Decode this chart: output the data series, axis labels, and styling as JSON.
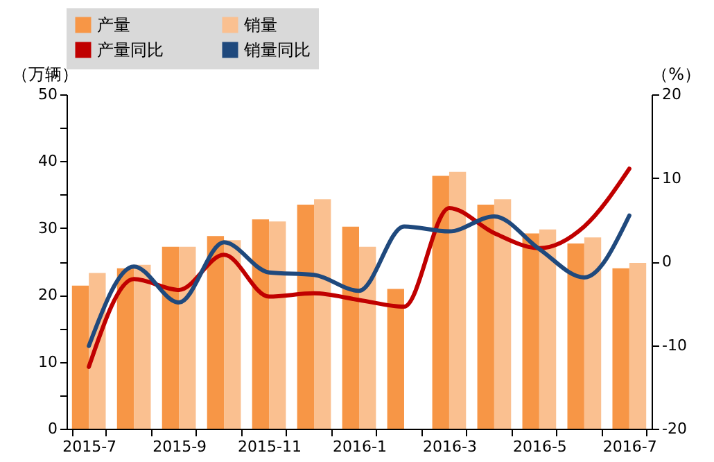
{
  "chart_data": {
    "type": "bar",
    "categories": [
      "2015-7",
      null,
      "2015-9",
      null,
      "2015-11",
      null,
      "2016-1",
      null,
      "2016-3",
      null,
      "2016-5",
      null,
      "2016-7"
    ],
    "series": [
      {
        "name": "产量",
        "type": "bar",
        "color": "#f79646",
        "values": [
          21.4,
          24.0,
          27.2,
          28.8,
          31.3,
          33.5,
          30.2,
          20.9,
          37.8,
          33.5,
          29.2,
          27.7,
          24.0
        ]
      },
      {
        "name": "销量",
        "type": "bar",
        "color": "#fac090",
        "values": [
          23.3,
          24.5,
          27.2,
          28.2,
          31.0,
          34.3,
          27.2,
          null,
          38.4,
          34.3,
          29.8,
          28.6,
          24.8
        ]
      },
      {
        "name": "产量同比",
        "type": "line",
        "axis": "y2",
        "color": "#c00000",
        "values": [
          -12.6,
          -2.1,
          -3.4,
          0.8,
          -4.2,
          -3.8,
          -4.6,
          -5.4,
          6.4,
          3.4,
          1.6,
          4.2,
          11.1
        ]
      },
      {
        "name": "销量同比",
        "type": "line",
        "axis": "y2",
        "color": "#1f497d",
        "values": [
          -10.1,
          -0.6,
          -4.9,
          2.3,
          -1.3,
          -1.6,
          -3.5,
          4.2,
          3.6,
          5.4,
          1.5,
          -1.9,
          5.5
        ]
      }
    ],
    "ylabel": "（万辆）",
    "y2label": "（%）",
    "ylim": [
      0,
      50
    ],
    "yticks": [
      0,
      {
        "value": 5,
        "label": null
      },
      10,
      {
        "value": 15,
        "label": null
      },
      20,
      {
        "value": 25,
        "label": null
      },
      30,
      {
        "value": 35,
        "label": null
      },
      40,
      {
        "value": 45,
        "label": null
      },
      50
    ],
    "y2lim": [
      -20,
      20
    ],
    "y2ticks": [
      -20,
      -10,
      0,
      10,
      20
    ],
    "legend": "top",
    "grid": false
  }
}
